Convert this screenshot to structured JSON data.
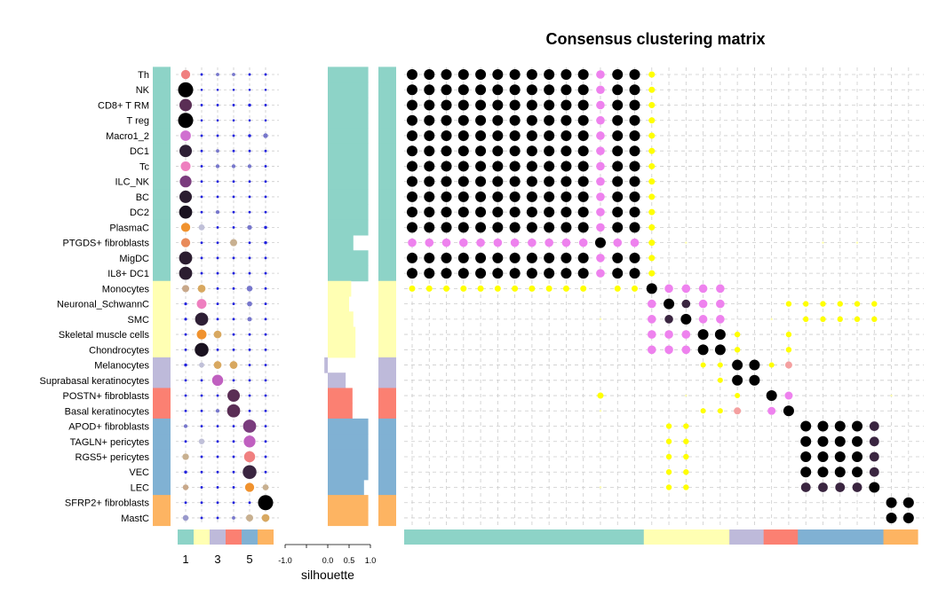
{
  "chart_data": {
    "type": "heatmap",
    "title": "Consensus clustering matrix",
    "cell_types": [
      "Th",
      "NK",
      "CD8+ T RM",
      "T reg",
      "Macro1_2",
      "DC1",
      "Tc",
      "ILC_NK",
      "BC",
      "DC2",
      "PlasmaC",
      "PTGDS+ fibroblasts",
      "MigDC",
      "IL8+ DC1",
      "Monocytes",
      "Neuronal_SchwannC",
      "SMC",
      "Skeletal muscle cells",
      "Chondrocytes",
      "Melanocytes",
      "Suprabasal keratinocytes",
      "POSTN+ fibroblasts",
      "Basal keratinocytes",
      "APOD+ fibroblasts",
      "TAGLN+ pericytes",
      "RGS5+ pericytes",
      "VEC",
      "LEC",
      "SFRP2+ fibroblasts",
      "MastC"
    ],
    "cluster_assignment": [
      1,
      1,
      1,
      1,
      1,
      1,
      1,
      1,
      1,
      1,
      1,
      1,
      1,
      1,
      2,
      2,
      2,
      2,
      2,
      3,
      3,
      4,
      4,
      5,
      5,
      5,
      5,
      5,
      6,
      6
    ],
    "cluster_colors": [
      "#8dd3c7",
      "#ffffb3",
      "#bebada",
      "#fb8072",
      "#80b1d3",
      "#fdb462"
    ],
    "cluster_sizes": [
      14,
      5,
      2,
      2,
      5,
      2
    ],
    "silhouette": [
      0.95,
      0.95,
      0.95,
      0.95,
      0.95,
      0.95,
      0.95,
      0.95,
      0.95,
      0.95,
      0.95,
      0.6,
      0.95,
      0.95,
      0.55,
      0.5,
      0.6,
      0.65,
      0.65,
      -0.08,
      0.42,
      0.58,
      0.58,
      0.95,
      0.95,
      0.95,
      0.95,
      0.85,
      0.95,
      0.95
    ],
    "silhouette_axis": {
      "label": "silhouette",
      "ticks": [
        -1.0,
        0.0,
        0.5,
        1.0
      ],
      "tick_labels": [
        "-1.0",
        "0.0",
        "0.5",
        "1.0"
      ],
      "range": [
        -1,
        1
      ]
    },
    "membership_axis": {
      "tick_labels": [
        "1",
        "3",
        "5"
      ],
      "tick_positions": [
        1,
        3,
        5
      ]
    },
    "dot_matrix": [
      [
        0.55,
        0.06,
        0.12,
        0.12,
        0.06,
        0.06
      ],
      [
        1,
        0.04,
        0.04,
        0.04,
        0.04,
        0.04
      ],
      [
        0.8,
        0.06,
        0.06,
        0.06,
        0.1,
        0.06
      ],
      [
        1,
        0.04,
        0.04,
        0.04,
        0.04,
        0.04
      ],
      [
        0.65,
        0.06,
        0.06,
        0.06,
        0.1,
        0.22
      ],
      [
        0.8,
        0.06,
        0.12,
        0.06,
        0.06,
        0.06
      ],
      [
        0.6,
        0.06,
        0.15,
        0.15,
        0.15,
        0.06
      ],
      [
        0.75,
        0.06,
        0.06,
        0.06,
        0.06,
        0.06
      ],
      [
        0.8,
        0.06,
        0.06,
        0.06,
        0.06,
        0.06
      ],
      [
        0.85,
        0.06,
        0.15,
        0.06,
        0.06,
        0.06
      ],
      [
        0.55,
        0.32,
        0.06,
        0.06,
        0.22,
        0.1
      ],
      [
        0.55,
        0.06,
        0.06,
        0.4,
        0.06,
        0.1
      ],
      [
        0.85,
        0.06,
        0.06,
        0.06,
        0.06,
        0.06
      ],
      [
        0.85,
        0.06,
        0.06,
        0.06,
        0.06,
        0.06
      ],
      [
        0.4,
        0.45,
        0.06,
        0.06,
        0.3,
        0.06
      ],
      [
        0.08,
        0.6,
        0.06,
        0.06,
        0.25,
        0.06
      ],
      [
        0.08,
        0.85,
        0.06,
        0.06,
        0.2,
        0.06
      ],
      [
        0.06,
        0.6,
        0.45,
        0.06,
        0.06,
        0.06
      ],
      [
        0.06,
        0.9,
        0.06,
        0.06,
        0.06,
        0.06
      ],
      [
        0.1,
        0.25,
        0.45,
        0.45,
        0.06,
        0.06
      ],
      [
        0.06,
        0.06,
        0.7,
        0.06,
        0.06,
        0.06
      ],
      [
        0.06,
        0.06,
        0.06,
        0.8,
        0.06,
        0.06
      ],
      [
        0.06,
        0.06,
        0.15,
        0.85,
        0.06,
        0.06
      ],
      [
        0.15,
        0.06,
        0.06,
        0.06,
        0.85,
        0.06
      ],
      [
        0.06,
        0.3,
        0.06,
        0.06,
        0.75,
        0.06
      ],
      [
        0.35,
        0.06,
        0.06,
        0.06,
        0.7,
        0.06
      ],
      [
        0.1,
        0.06,
        0.06,
        0.06,
        0.9,
        0.06
      ],
      [
        0.3,
        0.06,
        0.06,
        0.06,
        0.55,
        0.32
      ],
      [
        0.06,
        0.06,
        0.06,
        0.06,
        0.06,
        1
      ],
      [
        0.3,
        0.06,
        0.06,
        0.12,
        0.4,
        0.45
      ]
    ],
    "consensus_matrix_note": "30x30 symmetric block matrix; cluster 1 rows strong within-block, cluster 6 strong within-block"
  }
}
